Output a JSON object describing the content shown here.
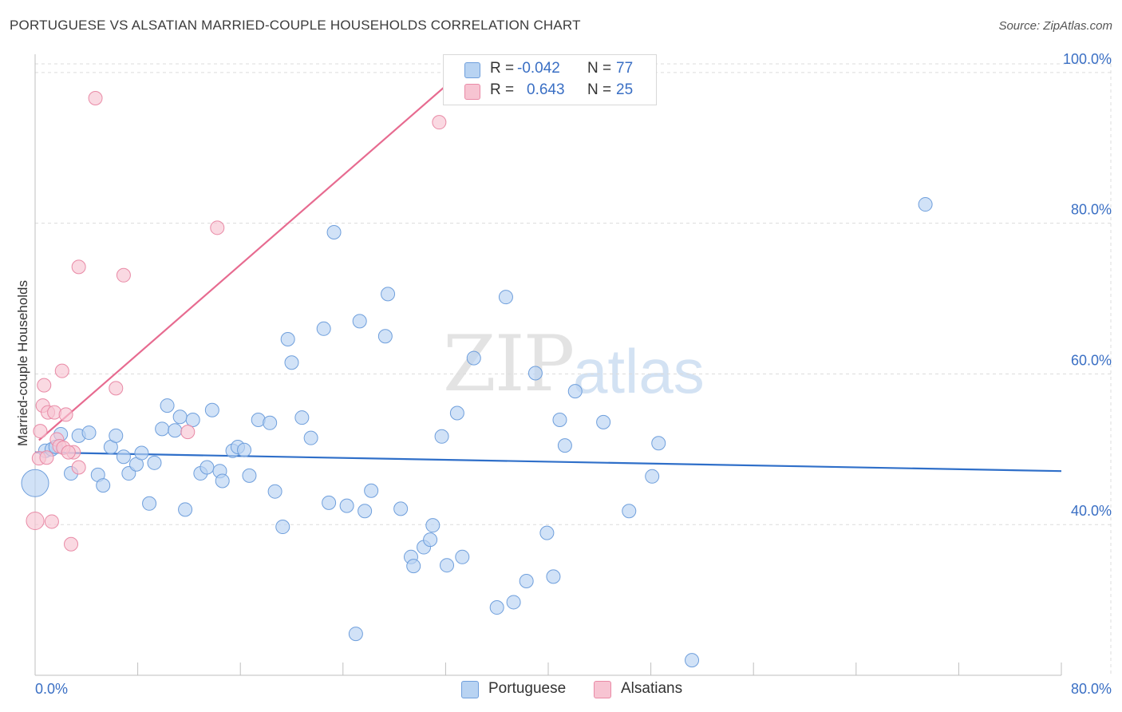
{
  "header": {
    "title": "PORTUGUESE VS ALSATIAN MARRIED-COUPLE HOUSEHOLDS CORRELATION CHART",
    "source": "Source: ZipAtlas.com"
  },
  "watermark": {
    "zip": "ZIP",
    "atlas": "atlas"
  },
  "legend_top": {
    "rows": [
      {
        "r_label": "R =",
        "r_value": "-0.042",
        "n_label": "N =",
        "n_value": "77"
      },
      {
        "r_label": "R =",
        "r_value": "0.643",
        "n_label": "N =",
        "n_value": "25"
      }
    ]
  },
  "legend_bottom": {
    "series1": "Portuguese",
    "series2": "Alsatians"
  },
  "colors": {
    "blue_fill": "#b8d3f2",
    "blue_stroke": "#6f9fdc",
    "blue_line": "#2f6fc9",
    "pink_fill": "#f7c4d2",
    "pink_stroke": "#e98aa6",
    "pink_line": "#e76b90",
    "grid": "#dcdcdc",
    "axis_label": "#3a6fc4"
  },
  "chart_data": {
    "type": "scatter",
    "title": "PORTUGUESE VS ALSATIAN MARRIED-COUPLE HOUSEHOLDS CORRELATION CHART",
    "xlabel": "",
    "ylabel": "Married-couple Households",
    "xlim": [
      0,
      80
    ],
    "ylim": [
      20,
      102
    ],
    "x_tick_labels": [
      "0.0%",
      "80.0%"
    ],
    "y_ticks": [
      40,
      60,
      80,
      100
    ],
    "y_tick_labels": [
      "40.0%",
      "60.0%",
      "80.0%",
      "100.0%"
    ],
    "grid": true,
    "series": [
      {
        "name": "Portuguese",
        "r": -0.042,
        "n": 77,
        "trend": {
          "x": [
            0,
            80
          ],
          "y": [
            49.6,
            47.1
          ]
        },
        "points": [
          {
            "x": 0.0,
            "y": 45.5,
            "s": 2
          },
          {
            "x": 0.8,
            "y": 49.8,
            "s": 1
          },
          {
            "x": 1.3,
            "y": 50.0,
            "s": 1
          },
          {
            "x": 1.6,
            "y": 50.3,
            "s": 1
          },
          {
            "x": 2.0,
            "y": 52.0,
            "s": 1
          },
          {
            "x": 2.8,
            "y": 46.8,
            "s": 1
          },
          {
            "x": 3.4,
            "y": 51.8,
            "s": 1
          },
          {
            "x": 4.2,
            "y": 52.2,
            "s": 1
          },
          {
            "x": 4.9,
            "y": 46.6,
            "s": 1
          },
          {
            "x": 5.3,
            "y": 45.2,
            "s": 1
          },
          {
            "x": 5.9,
            "y": 50.3,
            "s": 1
          },
          {
            "x": 6.3,
            "y": 51.8,
            "s": 1
          },
          {
            "x": 6.9,
            "y": 49.0,
            "s": 1
          },
          {
            "x": 7.3,
            "y": 46.8,
            "s": 1
          },
          {
            "x": 7.9,
            "y": 48.0,
            "s": 1
          },
          {
            "x": 8.3,
            "y": 49.5,
            "s": 1
          },
          {
            "x": 8.9,
            "y": 42.8,
            "s": 1
          },
          {
            "x": 9.3,
            "y": 48.2,
            "s": 1
          },
          {
            "x": 9.9,
            "y": 52.7,
            "s": 1
          },
          {
            "x": 10.3,
            "y": 55.8,
            "s": 1
          },
          {
            "x": 10.9,
            "y": 52.5,
            "s": 1
          },
          {
            "x": 11.3,
            "y": 54.3,
            "s": 1
          },
          {
            "x": 11.7,
            "y": 42.0,
            "s": 1
          },
          {
            "x": 12.3,
            "y": 53.9,
            "s": 1
          },
          {
            "x": 12.9,
            "y": 46.8,
            "s": 1
          },
          {
            "x": 13.4,
            "y": 47.6,
            "s": 1
          },
          {
            "x": 13.8,
            "y": 55.2,
            "s": 1
          },
          {
            "x": 14.4,
            "y": 47.1,
            "s": 1
          },
          {
            "x": 14.6,
            "y": 45.8,
            "s": 1
          },
          {
            "x": 15.4,
            "y": 49.8,
            "s": 1
          },
          {
            "x": 15.8,
            "y": 50.3,
            "s": 1
          },
          {
            "x": 16.3,
            "y": 49.9,
            "s": 1
          },
          {
            "x": 16.7,
            "y": 46.5,
            "s": 1
          },
          {
            "x": 17.4,
            "y": 53.9,
            "s": 1
          },
          {
            "x": 18.3,
            "y": 53.5,
            "s": 1
          },
          {
            "x": 18.7,
            "y": 44.4,
            "s": 1
          },
          {
            "x": 19.3,
            "y": 39.7,
            "s": 1
          },
          {
            "x": 19.7,
            "y": 64.6,
            "s": 1
          },
          {
            "x": 20.0,
            "y": 61.5,
            "s": 1
          },
          {
            "x": 20.8,
            "y": 54.2,
            "s": 1
          },
          {
            "x": 21.5,
            "y": 51.5,
            "s": 1
          },
          {
            "x": 22.5,
            "y": 66.0,
            "s": 1
          },
          {
            "x": 22.9,
            "y": 42.9,
            "s": 1
          },
          {
            "x": 23.3,
            "y": 78.8,
            "s": 1
          },
          {
            "x": 24.3,
            "y": 42.5,
            "s": 1
          },
          {
            "x": 25.3,
            "y": 67.0,
            "s": 1
          },
          {
            "x": 25.7,
            "y": 41.8,
            "s": 1
          },
          {
            "x": 26.2,
            "y": 44.5,
            "s": 1
          },
          {
            "x": 27.3,
            "y": 65.0,
            "s": 1
          },
          {
            "x": 27.5,
            "y": 70.6,
            "s": 1
          },
          {
            "x": 28.5,
            "y": 42.1,
            "s": 1
          },
          {
            "x": 29.3,
            "y": 35.7,
            "s": 1
          },
          {
            "x": 29.5,
            "y": 34.5,
            "s": 1
          },
          {
            "x": 30.3,
            "y": 37.0,
            "s": 1
          },
          {
            "x": 30.8,
            "y": 38.0,
            "s": 1
          },
          {
            "x": 31.0,
            "y": 39.9,
            "s": 1
          },
          {
            "x": 31.7,
            "y": 51.7,
            "s": 1
          },
          {
            "x": 32.1,
            "y": 34.6,
            "s": 1
          },
          {
            "x": 32.9,
            "y": 54.8,
            "s": 1
          },
          {
            "x": 33.3,
            "y": 35.7,
            "s": 1
          },
          {
            "x": 34.2,
            "y": 62.1,
            "s": 1
          },
          {
            "x": 36.0,
            "y": 29.0,
            "s": 1
          },
          {
            "x": 36.7,
            "y": 70.2,
            "s": 1
          },
          {
            "x": 37.3,
            "y": 29.7,
            "s": 1
          },
          {
            "x": 38.3,
            "y": 32.5,
            "s": 1
          },
          {
            "x": 39.0,
            "y": 60.1,
            "s": 1
          },
          {
            "x": 39.9,
            "y": 38.9,
            "s": 1
          },
          {
            "x": 40.4,
            "y": 33.1,
            "s": 1
          },
          {
            "x": 40.9,
            "y": 53.9,
            "s": 1
          },
          {
            "x": 41.3,
            "y": 50.5,
            "s": 1
          },
          {
            "x": 42.1,
            "y": 57.7,
            "s": 1
          },
          {
            "x": 44.3,
            "y": 53.6,
            "s": 1
          },
          {
            "x": 46.3,
            "y": 41.8,
            "s": 1
          },
          {
            "x": 48.1,
            "y": 46.4,
            "s": 1
          },
          {
            "x": 48.6,
            "y": 50.8,
            "s": 1
          },
          {
            "x": 25.0,
            "y": 25.5,
            "s": 1
          },
          {
            "x": 51.2,
            "y": 22.0,
            "s": 1
          },
          {
            "x": 69.4,
            "y": 82.5,
            "s": 1
          }
        ]
      },
      {
        "name": "Alsatians",
        "r": 0.643,
        "n": 25,
        "trend": {
          "x": [
            0.3,
            33.2
          ],
          "y": [
            51.2,
            100.0
          ]
        },
        "points": [
          {
            "x": 0.0,
            "y": 40.5,
            "s": 1.3
          },
          {
            "x": 0.3,
            "y": 48.8,
            "s": 1
          },
          {
            "x": 0.4,
            "y": 52.4,
            "s": 1
          },
          {
            "x": 0.6,
            "y": 55.8,
            "s": 1
          },
          {
            "x": 0.7,
            "y": 58.5,
            "s": 1
          },
          {
            "x": 0.9,
            "y": 48.9,
            "s": 1
          },
          {
            "x": 1.0,
            "y": 54.9,
            "s": 1
          },
          {
            "x": 1.3,
            "y": 40.4,
            "s": 1
          },
          {
            "x": 1.5,
            "y": 54.9,
            "s": 1
          },
          {
            "x": 1.7,
            "y": 51.3,
            "s": 1
          },
          {
            "x": 1.9,
            "y": 50.4,
            "s": 1
          },
          {
            "x": 2.1,
            "y": 60.4,
            "s": 1
          },
          {
            "x": 2.4,
            "y": 54.6,
            "s": 1
          },
          {
            "x": 2.8,
            "y": 37.4,
            "s": 1
          },
          {
            "x": 3.0,
            "y": 49.6,
            "s": 1
          },
          {
            "x": 3.4,
            "y": 74.2,
            "s": 1
          },
          {
            "x": 3.4,
            "y": 47.6,
            "s": 1
          },
          {
            "x": 4.7,
            "y": 96.6,
            "s": 1
          },
          {
            "x": 6.3,
            "y": 58.1,
            "s": 1
          },
          {
            "x": 6.9,
            "y": 73.1,
            "s": 1
          },
          {
            "x": 11.9,
            "y": 52.3,
            "s": 1
          },
          {
            "x": 14.2,
            "y": 79.4,
            "s": 1
          },
          {
            "x": 31.5,
            "y": 93.4,
            "s": 1
          },
          {
            "x": 2.2,
            "y": 50.2,
            "s": 1
          },
          {
            "x": 2.6,
            "y": 49.6,
            "s": 1
          }
        ]
      }
    ]
  }
}
